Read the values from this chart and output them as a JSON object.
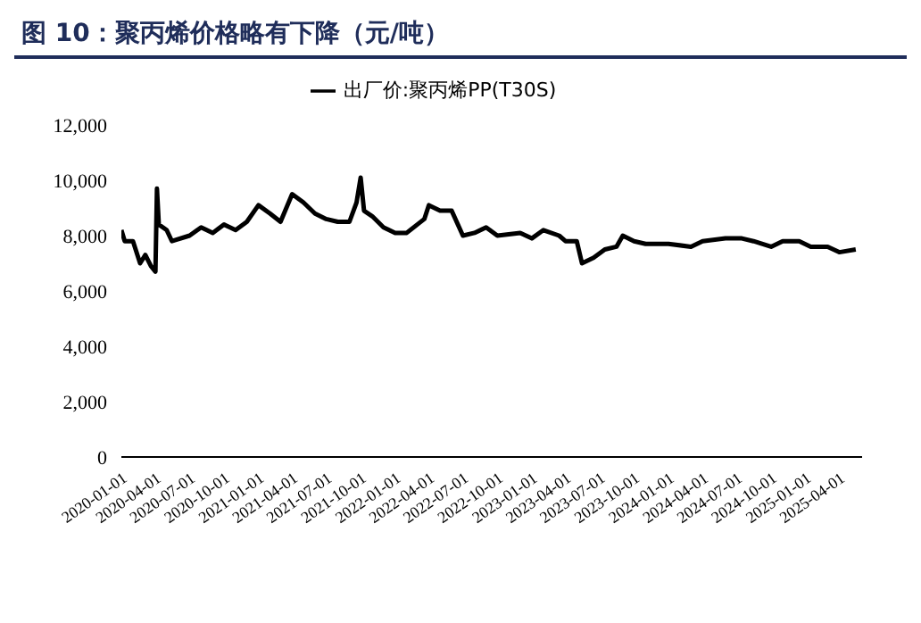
{
  "chart_data": {
    "type": "line",
    "title": "图 10：聚丙烯价格略有下降（元/吨）",
    "x": [
      "2020-01-01",
      "2020-01-10",
      "2020-02-01",
      "2020-02-20",
      "2020-03-05",
      "2020-03-20",
      "2020-04-01",
      "2020-04-05",
      "2020-04-10",
      "2020-05-01",
      "2020-05-15",
      "2020-07-01",
      "2020-08-01",
      "2020-09-01",
      "2020-10-01",
      "2020-11-01",
      "2020-12-01",
      "2021-01-01",
      "2021-02-01",
      "2021-03-01",
      "2021-04-01",
      "2021-05-01",
      "2021-06-01",
      "2021-07-01",
      "2021-08-01",
      "2021-09-01",
      "2021-09-20",
      "2021-10-01",
      "2021-10-10",
      "2021-11-01",
      "2021-12-01",
      "2022-01-01",
      "2022-02-01",
      "2022-03-01",
      "2022-03-20",
      "2022-04-01",
      "2022-05-01",
      "2022-06-01",
      "2022-07-01",
      "2022-08-01",
      "2022-09-01",
      "2022-10-01",
      "2022-12-01",
      "2023-01-01",
      "2023-02-01",
      "2023-03-15",
      "2023-04-01",
      "2023-05-01",
      "2023-05-15",
      "2023-06-15",
      "2023-07-15",
      "2023-08-15",
      "2023-09-01",
      "2023-10-01",
      "2023-11-01",
      "2024-01-01",
      "2024-03-01",
      "2024-04-01",
      "2024-06-01",
      "2024-07-15",
      "2024-08-15",
      "2024-10-01",
      "2024-11-01",
      "2024-12-15",
      "2025-01-15",
      "2025-03-01",
      "2025-04-01",
      "2025-05-15"
    ],
    "series": [
      {
        "name": "出厂价:聚丙烯PP(T30S)",
        "color": "#000000",
        "values": [
          8200,
          7800,
          7800,
          7000,
          7300,
          6900,
          6700,
          9700,
          8400,
          8200,
          7800,
          8000,
          8300,
          8100,
          8400,
          8200,
          8500,
          9100,
          8800,
          8500,
          9500,
          9200,
          8800,
          8600,
          8500,
          8500,
          9200,
          10100,
          8900,
          8700,
          8300,
          8100,
          8100,
          8400,
          8600,
          9100,
          8900,
          8900,
          8000,
          8100,
          8300,
          8000,
          8100,
          7900,
          8200,
          8000,
          7800,
          7800,
          7000,
          7200,
          7500,
          7600,
          8000,
          7800,
          7700,
          7700,
          7600,
          7800,
          7900,
          7900,
          7800,
          7600,
          7800,
          7800,
          7600,
          7600,
          7400,
          7500
        ]
      }
    ],
    "xlim": [
      "2020-01-01",
      "2025-06-01"
    ],
    "xticks": [
      "2020-01-01",
      "2020-04-01",
      "2020-07-01",
      "2020-10-01",
      "2021-01-01",
      "2021-04-01",
      "2021-07-01",
      "2021-10-01",
      "2022-01-01",
      "2022-04-01",
      "2022-07-01",
      "2022-10-01",
      "2023-01-01",
      "2023-04-01",
      "2023-07-01",
      "2023-10-01",
      "2024-01-01",
      "2024-04-01",
      "2024-07-01",
      "2024-10-01",
      "2025-01-01",
      "2025-04-01"
    ],
    "ylim": [
      0,
      12000
    ],
    "yticks": [
      {
        "value": 0,
        "label": "0"
      },
      {
        "value": 2000,
        "label": "2,000"
      },
      {
        "value": 4000,
        "label": "4,000"
      },
      {
        "value": 6000,
        "label": "6,000"
      },
      {
        "value": 8000,
        "label": "8,000"
      },
      {
        "value": 10000,
        "label": "10,000"
      },
      {
        "value": 12000,
        "label": "12,000"
      }
    ],
    "grid": false,
    "legend": "top",
    "marker": "none",
    "line_style": "solid"
  }
}
